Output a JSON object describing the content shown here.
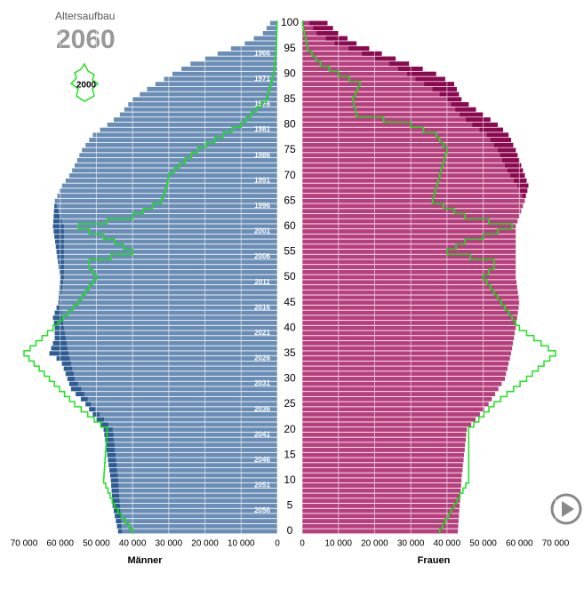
{
  "chart_data": {
    "type": "population_pyramid",
    "title": "Altersaufbau",
    "subtitle": "2060",
    "xlim": [
      0,
      70000
    ],
    "xticks": [
      0,
      {
        "value": 10000,
        "label": "10 000"
      },
      {
        "value": 20000,
        "label": "20 000"
      },
      {
        "value": 30000,
        "label": "30 000"
      },
      {
        "value": 40000,
        "label": "40 000"
      },
      {
        "value": 50000,
        "label": "50 000"
      },
      {
        "value": 60000,
        "label": "60 000"
      },
      {
        "value": 70000,
        "label": "70 000"
      }
    ],
    "ylim": [
      0,
      100
    ],
    "yticks": [
      0,
      5,
      10,
      15,
      20,
      25,
      30,
      35,
      40,
      45,
      50,
      55,
      60,
      65,
      70,
      75,
      80,
      85,
      90,
      95,
      100
    ],
    "birth_year_labels": [
      "2056",
      "2051",
      "2046",
      "2041",
      "2036",
      "2031",
      "2026",
      "2021",
      "2016",
      "2011",
      "2006",
      "2001",
      "1996",
      "1991",
      "1986",
      "1981",
      "1976",
      "1971",
      "1966"
    ],
    "series": [
      {
        "name": "Männer",
        "color": "#6a8db5",
        "surplus_color": "#2e5c92",
        "values": [
          44000,
          44300,
          44600,
          44900,
          45200,
          45500,
          45600,
          45700,
          45800,
          45900,
          46000,
          46200,
          46400,
          46600,
          46800,
          47000,
          47200,
          47400,
          47600,
          47800,
          48000,
          49000,
          50000,
          51000,
          52000,
          53000,
          54300,
          55700,
          57000,
          57500,
          58000,
          58500,
          59000,
          59500,
          61000,
          63000,
          62500,
          62000,
          61500,
          61500,
          61500,
          61700,
          62000,
          61500,
          61000,
          60500,
          60400,
          60300,
          60200,
          60100,
          60000,
          60200,
          60400,
          60600,
          60800,
          61000,
          61200,
          61400,
          61600,
          61800,
          62000,
          61900,
          61800,
          61700,
          61600,
          61500,
          60800,
          60200,
          59500,
          58500,
          57500,
          56700,
          56000,
          55300,
          54700,
          54000,
          53000,
          52000,
          51000,
          49000,
          47000,
          45200,
          43500,
          42300,
          41200,
          40000,
          38000,
          36000,
          33700,
          31300,
          29000,
          26500,
          24000,
          20000,
          16500,
          12800,
          9000,
          6500,
          4000,
          3000,
          2000
        ]
      },
      {
        "name": "Frauen",
        "color": "#b6407e",
        "surplus_color": "#8a0a50",
        "values": [
          43000,
          43100,
          43200,
          43300,
          43400,
          43500,
          43600,
          43700,
          43800,
          43900,
          44000,
          44100,
          44300,
          44400,
          44600,
          44700,
          44900,
          45000,
          45200,
          45300,
          45500,
          46700,
          47900,
          49100,
          50300,
          51500,
          52400,
          53300,
          54200,
          55100,
          56000,
          56300,
          56700,
          57000,
          57400,
          57700,
          58000,
          58200,
          58500,
          58700,
          59000,
          59200,
          59400,
          59600,
          59800,
          60000,
          59800,
          59600,
          59400,
          59200,
          59000,
          59000,
          59000,
          59000,
          59000,
          59000,
          59000,
          59000,
          59000,
          59000,
          59000,
          59500,
          60000,
          60500,
          61000,
          61500,
          61800,
          62200,
          62500,
          62000,
          61500,
          61000,
          60500,
          60000,
          59500,
          59000,
          58300,
          57700,
          57000,
          55500,
          54000,
          52000,
          50000,
          48000,
          46000,
          44000,
          43300,
          42700,
          42000,
          39500,
          37000,
          33300,
          29500,
          25800,
          22000,
          18500,
          15000,
          12500,
          10000,
          8500,
          7000
        ]
      }
    ],
    "reference": {
      "name": "2000",
      "color": "#22e022",
      "male": [
        40000,
        41000,
        42000,
        43000,
        44000,
        45000,
        45600,
        46200,
        46800,
        47400,
        48000,
        47900,
        47800,
        47700,
        47600,
        47500,
        47400,
        47300,
        47200,
        47100,
        47000,
        48800,
        50600,
        52400,
        54200,
        56000,
        57400,
        58800,
        60200,
        61600,
        63000,
        64400,
        65800,
        67200,
        68600,
        70000,
        68300,
        66700,
        65000,
        63500,
        62000,
        60600,
        59200,
        57800,
        56400,
        55000,
        54000,
        53000,
        52000,
        51000,
        50000,
        51000,
        52000,
        52000,
        46000,
        40000,
        42500,
        45000,
        48000,
        52000,
        55000,
        47000,
        40000,
        37000,
        34500,
        32000,
        31500,
        31000,
        30500,
        30200,
        30000,
        28500,
        27000,
        25500,
        23700,
        22000,
        19700,
        17300,
        15000,
        12500,
        10000,
        8600,
        7200,
        5800,
        4400,
        3000,
        2600,
        2200,
        1800,
        1400,
        1000,
        860,
        720,
        580,
        440,
        300,
        250,
        200,
        150,
        100,
        50
      ],
      "female": [
        38000,
        38800,
        39600,
        40400,
        41200,
        42000,
        42800,
        43600,
        44400,
        45200,
        46000,
        46000,
        46000,
        46000,
        46000,
        46000,
        46000,
        46000,
        46000,
        46000,
        46000,
        47400,
        48800,
        50200,
        51600,
        53000,
        54800,
        56600,
        58400,
        60200,
        62000,
        63600,
        65200,
        66800,
        68400,
        70000,
        68000,
        66000,
        64000,
        62000,
        60000,
        59000,
        58000,
        57000,
        56000,
        55000,
        54000,
        53000,
        52000,
        51000,
        50000,
        51500,
        53000,
        53000,
        46500,
        40000,
        42500,
        45000,
        50000,
        54000,
        58000,
        51500,
        45000,
        42000,
        39000,
        36000,
        36400,
        36800,
        37200,
        37600,
        38000,
        38400,
        38800,
        39200,
        39600,
        40000,
        39000,
        38000,
        37000,
        33500,
        30000,
        22500,
        15000,
        14700,
        14300,
        14000,
        14700,
        15300,
        16000,
        13000,
        10000,
        7500,
        5000,
        3800,
        2700,
        1500,
        1200,
        900,
        600,
        300,
        100
      ]
    }
  }
}
